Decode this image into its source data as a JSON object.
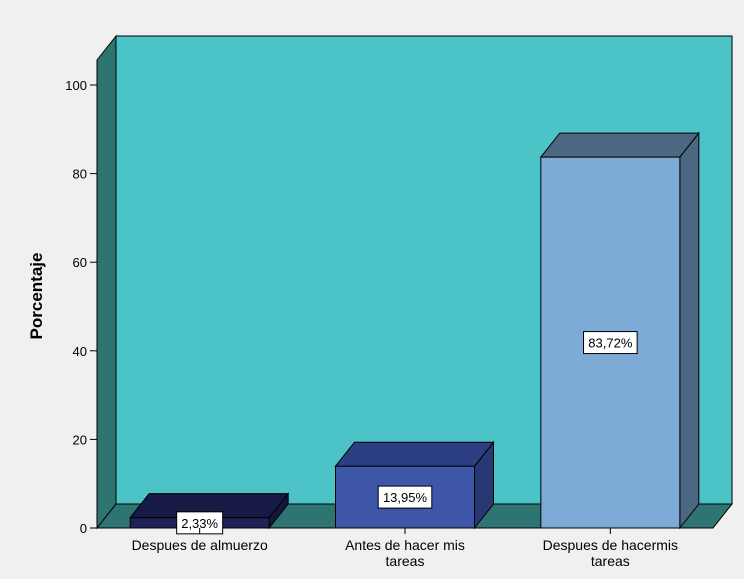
{
  "chart_data": {
    "type": "bar",
    "title": "",
    "xlabel": "",
    "ylabel": "Porcentaje",
    "ylim": [
      0,
      100
    ],
    "yticks": [
      0,
      20,
      40,
      60,
      80,
      100
    ],
    "grid": false,
    "legend": "none",
    "style": "3d",
    "categories": [
      [
        "Despues de almuerzo"
      ],
      [
        "Antes de  hacer mis",
        "tareas"
      ],
      [
        "Despues de hacermis",
        "tareas"
      ]
    ],
    "values": [
      2.33,
      13.95,
      83.72
    ],
    "data_labels": [
      "2,33%",
      "13,95%",
      "83,72%"
    ],
    "colors": {
      "background": "#f0f0f0",
      "plot_back_wall": "#4bc3c7",
      "plot_side_wall": "#2d7472",
      "plot_floor": "#2d7472",
      "bars": [
        "#1f2257",
        "#3d56a8",
        "#7eaad6"
      ],
      "bar_tops": [
        "#171a45",
        "#2d3f84",
        "#4c6880"
      ],
      "bar_sides": [
        "#15183d",
        "#283873",
        "#4c6880"
      ]
    }
  }
}
